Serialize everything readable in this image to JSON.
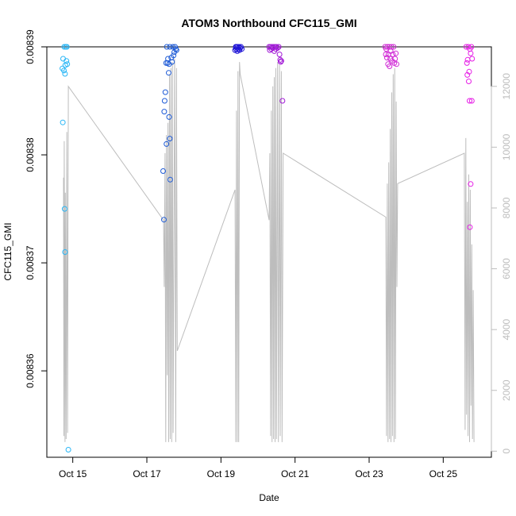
{
  "chart_data": {
    "type": "scatter",
    "title": "ATOM3 Northbound CFC115_GMI",
    "xlabel": "Date",
    "ylabel": "CFC115_GMI",
    "x_unit": "day of October",
    "xlim": [
      14.3,
      26.3
    ],
    "ylim": [
      0.008352,
      0.00839
    ],
    "y_ticks": [
      0.00836,
      0.00837,
      0.00838,
      0.00839
    ],
    "y_tick_labels": [
      "0.00836",
      "0.00837",
      "0.00838",
      "0.00839"
    ],
    "x_ticks": [
      15,
      17,
      19,
      21,
      23,
      25
    ],
    "x_tick_labels": [
      "Oct 15",
      "Oct 17",
      "Oct 19",
      "Oct 21",
      "Oct 23",
      "Oct 25"
    ],
    "y2_label": "",
    "y2_lim": [
      -200,
      13300
    ],
    "y2_ticks": [
      0,
      2000,
      4000,
      6000,
      8000,
      10000,
      12000
    ],
    "y2_tick_labels": [
      "0",
      "2000",
      "4000",
      "6000",
      "8000",
      "10000",
      "12000"
    ],
    "altitude_color": "#bdbdbd",
    "altitude_trace": [
      [
        14.75,
        9000
      ],
      [
        14.76,
        500
      ],
      [
        14.77,
        10200
      ],
      [
        14.79,
        300
      ],
      [
        14.8,
        8500
      ],
      [
        14.82,
        400
      ],
      [
        14.84,
        10500
      ],
      [
        14.86,
        600
      ],
      [
        14.88,
        12000
      ],
      [
        17.45,
        7600
      ],
      [
        17.47,
        5400
      ],
      [
        17.49,
        9800
      ],
      [
        17.51,
        300
      ],
      [
        17.53,
        10400
      ],
      [
        17.55,
        2500
      ],
      [
        17.57,
        10800
      ],
      [
        17.59,
        300
      ],
      [
        17.61,
        12400
      ],
      [
        17.63,
        400
      ],
      [
        17.65,
        12600
      ],
      [
        17.67,
        300
      ],
      [
        17.69,
        12800
      ],
      [
        17.71,
        600
      ],
      [
        17.75,
        12900
      ],
      [
        17.78,
        300
      ],
      [
        17.8,
        12600
      ],
      [
        17.82,
        3300
      ],
      [
        19.38,
        8600
      ],
      [
        19.4,
        300
      ],
      [
        19.42,
        11200
      ],
      [
        19.44,
        300
      ],
      [
        19.46,
        12500
      ],
      [
        19.48,
        300
      ],
      [
        19.5,
        12800
      ],
      [
        19.52,
        12400
      ],
      [
        20.3,
        7600
      ],
      [
        20.32,
        9800
      ],
      [
        20.34,
        500
      ],
      [
        20.36,
        11200
      ],
      [
        20.38,
        300
      ],
      [
        20.4,
        12000
      ],
      [
        20.42,
        400
      ],
      [
        20.44,
        12300
      ],
      [
        20.46,
        300
      ],
      [
        20.48,
        12600
      ],
      [
        20.5,
        400
      ],
      [
        20.53,
        12800
      ],
      [
        20.55,
        300
      ],
      [
        20.58,
        12700
      ],
      [
        20.6,
        500
      ],
      [
        20.63,
        12500
      ],
      [
        20.65,
        300
      ],
      [
        20.68,
        9800
      ],
      [
        23.45,
        7700
      ],
      [
        23.47,
        500
      ],
      [
        23.49,
        8800
      ],
      [
        23.51,
        300
      ],
      [
        23.53,
        9500
      ],
      [
        23.55,
        400
      ],
      [
        23.57,
        10600
      ],
      [
        23.59,
        300
      ],
      [
        23.61,
        11800
      ],
      [
        23.63,
        500
      ],
      [
        23.65,
        12400
      ],
      [
        23.67,
        300
      ],
      [
        23.69,
        12600
      ],
      [
        23.71,
        400
      ],
      [
        23.73,
        11500
      ],
      [
        23.75,
        5400
      ],
      [
        23.77,
        8800
      ],
      [
        25.57,
        9800
      ],
      [
        25.59,
        700
      ],
      [
        25.61,
        10300
      ],
      [
        25.63,
        1200
      ],
      [
        25.65,
        8200
      ],
      [
        25.67,
        500
      ],
      [
        25.69,
        9100
      ],
      [
        25.71,
        300
      ],
      [
        25.73,
        8600
      ],
      [
        25.75,
        1500
      ],
      [
        25.77,
        6800
      ],
      [
        25.79,
        400
      ],
      [
        25.81,
        5300
      ],
      [
        25.83,
        300
      ]
    ],
    "points": [
      {
        "x": 14.72,
        "y": 0.008388,
        "color": "#29b6f6"
      },
      {
        "x": 14.74,
        "y": 0.0083889,
        "color": "#29b6f6"
      },
      {
        "x": 14.76,
        "y": 0.0083878,
        "color": "#29b6f6"
      },
      {
        "x": 14.77,
        "y": 0.00839,
        "color": "#29b6f6"
      },
      {
        "x": 14.79,
        "y": 0.0083875,
        "color": "#29b6f6"
      },
      {
        "x": 14.8,
        "y": 0.0083883,
        "color": "#29b6f6"
      },
      {
        "x": 14.81,
        "y": 0.00839,
        "color": "#29b6f6"
      },
      {
        "x": 14.83,
        "y": 0.0083887,
        "color": "#29b6f6"
      },
      {
        "x": 14.84,
        "y": 0.00839,
        "color": "#29b6f6"
      },
      {
        "x": 14.85,
        "y": 0.0083884,
        "color": "#29b6f6"
      },
      {
        "x": 14.73,
        "y": 0.008383,
        "color": "#29b6f6"
      },
      {
        "x": 14.78,
        "y": 0.008375,
        "color": "#29b6f6"
      },
      {
        "x": 14.79,
        "y": 0.008371,
        "color": "#29b6f6"
      },
      {
        "x": 14.88,
        "y": 0.0083527,
        "color": "#29b6f6"
      },
      {
        "x": 17.44,
        "y": 0.0083785,
        "color": "#1e5bd6"
      },
      {
        "x": 17.46,
        "y": 0.008374,
        "color": "#1e5bd6"
      },
      {
        "x": 17.47,
        "y": 0.008384,
        "color": "#1e5bd6"
      },
      {
        "x": 17.48,
        "y": 0.008385,
        "color": "#1e5bd6"
      },
      {
        "x": 17.5,
        "y": 0.0083858,
        "color": "#1e5bd6"
      },
      {
        "x": 17.52,
        "y": 0.0083885,
        "color": "#1e5bd6"
      },
      {
        "x": 17.54,
        "y": 0.00839,
        "color": "#1e5bd6"
      },
      {
        "x": 17.56,
        "y": 0.0083885,
        "color": "#1e5bd6"
      },
      {
        "x": 17.57,
        "y": 0.0083889,
        "color": "#1e5bd6"
      },
      {
        "x": 17.59,
        "y": 0.0083876,
        "color": "#1e5bd6"
      },
      {
        "x": 17.6,
        "y": 0.0083884,
        "color": "#1e5bd6"
      },
      {
        "x": 17.62,
        "y": 0.00839,
        "color": "#1e5bd6"
      },
      {
        "x": 17.53,
        "y": 0.008381,
        "color": "#1e5bd6"
      },
      {
        "x": 17.6,
        "y": 0.0083835,
        "color": "#1e5bd6"
      },
      {
        "x": 17.62,
        "y": 0.0083815,
        "color": "#1e5bd6"
      },
      {
        "x": 17.63,
        "y": 0.0083777,
        "color": "#1e5bd6"
      },
      {
        "x": 17.66,
        "y": 0.008389,
        "color": "#1e5bd6"
      },
      {
        "x": 17.68,
        "y": 0.0083886,
        "color": "#1e5bd6"
      },
      {
        "x": 17.7,
        "y": 0.00839,
        "color": "#1e5bd6"
      },
      {
        "x": 17.72,
        "y": 0.0083892,
        "color": "#1e5bd6"
      },
      {
        "x": 17.74,
        "y": 0.0083895,
        "color": "#1e5bd6"
      },
      {
        "x": 17.76,
        "y": 0.00839,
        "color": "#1e5bd6"
      },
      {
        "x": 17.78,
        "y": 0.0083898,
        "color": "#1e5bd6"
      },
      {
        "x": 17.8,
        "y": 0.0083897,
        "color": "#1e5bd6"
      },
      {
        "x": 19.38,
        "y": 0.0083897,
        "color": "#1f14d6"
      },
      {
        "x": 19.4,
        "y": 0.00839,
        "color": "#1f14d6"
      },
      {
        "x": 19.41,
        "y": 0.0083898,
        "color": "#1f14d6"
      },
      {
        "x": 19.42,
        "y": 0.00839,
        "color": "#1f14d6"
      },
      {
        "x": 19.44,
        "y": 0.0083896,
        "color": "#1f14d6"
      },
      {
        "x": 19.45,
        "y": 0.00839,
        "color": "#1f14d6"
      },
      {
        "x": 19.47,
        "y": 0.0083898,
        "color": "#1f14d6"
      },
      {
        "x": 19.49,
        "y": 0.00839,
        "color": "#1f14d6"
      },
      {
        "x": 19.5,
        "y": 0.0083897,
        "color": "#1f14d6"
      },
      {
        "x": 19.52,
        "y": 0.0083899,
        "color": "#1f14d6"
      },
      {
        "x": 19.54,
        "y": 0.00839,
        "color": "#1f14d6"
      },
      {
        "x": 19.56,
        "y": 0.0083898,
        "color": "#1f14d6"
      },
      {
        "x": 20.3,
        "y": 0.00839,
        "color": "#a11ad6"
      },
      {
        "x": 20.32,
        "y": 0.0083897,
        "color": "#a11ad6"
      },
      {
        "x": 20.34,
        "y": 0.00839,
        "color": "#a11ad6"
      },
      {
        "x": 20.36,
        "y": 0.0083898,
        "color": "#a11ad6"
      },
      {
        "x": 20.38,
        "y": 0.00839,
        "color": "#a11ad6"
      },
      {
        "x": 20.4,
        "y": 0.0083899,
        "color": "#a11ad6"
      },
      {
        "x": 20.42,
        "y": 0.00839,
        "color": "#a11ad6"
      },
      {
        "x": 20.44,
        "y": 0.0083896,
        "color": "#a11ad6"
      },
      {
        "x": 20.46,
        "y": 0.00839,
        "color": "#a11ad6"
      },
      {
        "x": 20.48,
        "y": 0.0083898,
        "color": "#a11ad6"
      },
      {
        "x": 20.5,
        "y": 0.00839,
        "color": "#a11ad6"
      },
      {
        "x": 20.53,
        "y": 0.0083899,
        "color": "#a11ad6"
      },
      {
        "x": 20.56,
        "y": 0.00839,
        "color": "#a11ad6"
      },
      {
        "x": 20.58,
        "y": 0.0083893,
        "color": "#a11ad6"
      },
      {
        "x": 20.6,
        "y": 0.0083888,
        "color": "#a11ad6"
      },
      {
        "x": 20.61,
        "y": 0.0083886,
        "color": "#a11ad6"
      },
      {
        "x": 20.63,
        "y": 0.0083887,
        "color": "#a11ad6"
      },
      {
        "x": 20.66,
        "y": 0.008385,
        "color": "#a11ad6"
      },
      {
        "x": 23.43,
        "y": 0.00839,
        "color": "#d12dd6"
      },
      {
        "x": 23.45,
        "y": 0.0083893,
        "color": "#d12dd6"
      },
      {
        "x": 23.46,
        "y": 0.0083898,
        "color": "#d12dd6"
      },
      {
        "x": 23.48,
        "y": 0.008389,
        "color": "#d12dd6"
      },
      {
        "x": 23.49,
        "y": 0.00839,
        "color": "#d12dd6"
      },
      {
        "x": 23.51,
        "y": 0.0083884,
        "color": "#d12dd6"
      },
      {
        "x": 23.52,
        "y": 0.0083893,
        "color": "#d12dd6"
      },
      {
        "x": 23.54,
        "y": 0.00839,
        "color": "#d12dd6"
      },
      {
        "x": 23.55,
        "y": 0.0083882,
        "color": "#d12dd6"
      },
      {
        "x": 23.57,
        "y": 0.0083889,
        "color": "#d12dd6"
      },
      {
        "x": 23.58,
        "y": 0.0083896,
        "color": "#d12dd6"
      },
      {
        "x": 23.6,
        "y": 0.00839,
        "color": "#d12dd6"
      },
      {
        "x": 23.62,
        "y": 0.0083887,
        "color": "#d12dd6"
      },
      {
        "x": 23.64,
        "y": 0.0083893,
        "color": "#d12dd6"
      },
      {
        "x": 23.66,
        "y": 0.00839,
        "color": "#d12dd6"
      },
      {
        "x": 23.68,
        "y": 0.0083885,
        "color": "#d12dd6"
      },
      {
        "x": 23.7,
        "y": 0.0083889,
        "color": "#d12dd6"
      },
      {
        "x": 23.72,
        "y": 0.0083894,
        "color": "#d12dd6"
      },
      {
        "x": 23.74,
        "y": 0.0083884,
        "color": "#d12dd6"
      },
      {
        "x": 25.62,
        "y": 0.00839,
        "color": "#e61ee6"
      },
      {
        "x": 25.64,
        "y": 0.0083885,
        "color": "#e61ee6"
      },
      {
        "x": 25.66,
        "y": 0.0083888,
        "color": "#e61ee6"
      },
      {
        "x": 25.68,
        "y": 0.00839,
        "color": "#e61ee6"
      },
      {
        "x": 25.7,
        "y": 0.0083877,
        "color": "#e61ee6"
      },
      {
        "x": 25.72,
        "y": 0.0083898,
        "color": "#e61ee6"
      },
      {
        "x": 25.74,
        "y": 0.0083894,
        "color": "#e61ee6"
      },
      {
        "x": 25.76,
        "y": 0.00839,
        "color": "#e61ee6"
      },
      {
        "x": 25.78,
        "y": 0.0083889,
        "color": "#e61ee6"
      },
      {
        "x": 25.65,
        "y": 0.0083874,
        "color": "#e61ee6"
      },
      {
        "x": 25.69,
        "y": 0.0083868,
        "color": "#e61ee6"
      },
      {
        "x": 25.71,
        "y": 0.008385,
        "color": "#e61ee6"
      },
      {
        "x": 25.77,
        "y": 0.008385,
        "color": "#e61ee6"
      },
      {
        "x": 25.74,
        "y": 0.0083773,
        "color": "#e61ee6"
      },
      {
        "x": 25.72,
        "y": 0.0083733,
        "color": "#e61ee6"
      }
    ]
  }
}
